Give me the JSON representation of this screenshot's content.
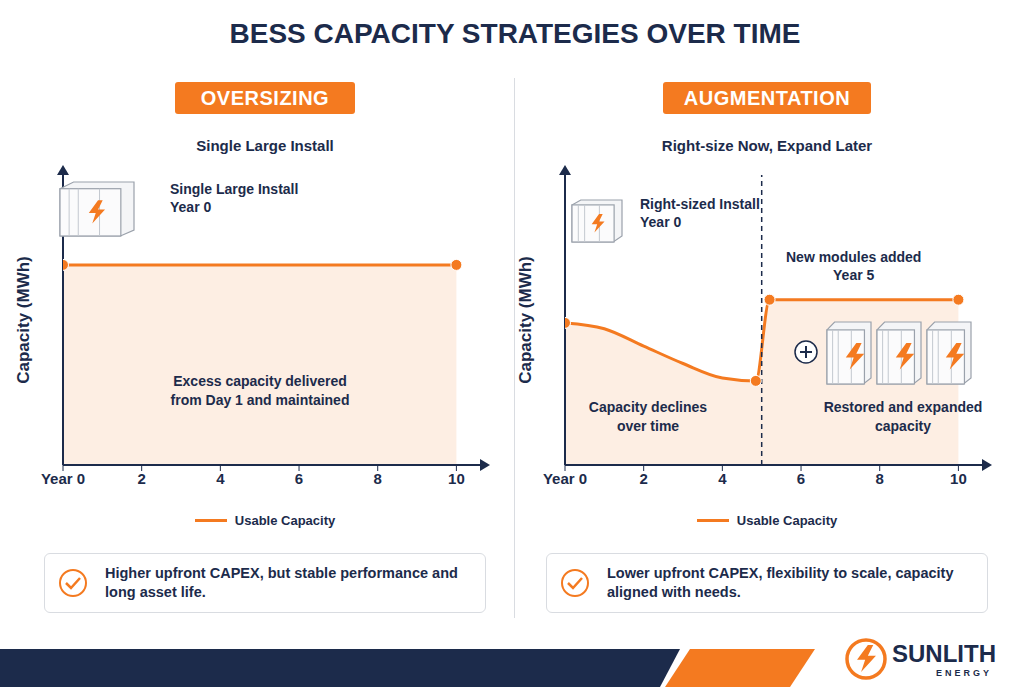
{
  "title": "BESS CAPACITY STRATEGIES OVER TIME",
  "chart_data": [
    {
      "type": "area",
      "badge": "OVERSIZING",
      "subtitle": "Single Large Install",
      "y_label": "Capacity (MWh)",
      "x": [
        0,
        10
      ],
      "series": [
        {
          "name": "Usable Capacity",
          "color": "#f47a20",
          "values": [
            69,
            69
          ],
          "marker": "circle"
        }
      ],
      "xlim": [
        0,
        10.6
      ],
      "xticks": [
        {
          "value": 0,
          "label": "Year 0"
        },
        2,
        4,
        6,
        8,
        10
      ],
      "ylim": [
        0,
        100
      ],
      "yticks": [],
      "tick_labels": "x",
      "legend": "bottom",
      "icon_label": "Single Large Install",
      "icon_sublabel": "Year 0",
      "area_labels": [
        "Excess capacity delivered from Day 1 and maintained"
      ],
      "note": "Higher upfront CAPEX, but stable performance and long asset life."
    },
    {
      "type": "area",
      "badge": "AUGMENTATION",
      "subtitle": "Right-size Now, Expand Later",
      "y_label": "Capacity (MWh)",
      "x": [
        0,
        1,
        2,
        3,
        4,
        4.85,
        5.2,
        6,
        8,
        10
      ],
      "series": [
        {
          "name": "Usable Capacity",
          "color": "#f47a20",
          "values": [
            49,
            47,
            41,
            35,
            30,
            29,
            57,
            57,
            57,
            57
          ],
          "marker": "circle"
        }
      ],
      "xlim": [
        0,
        10.6
      ],
      "xticks": [
        {
          "value": 0,
          "label": "Year 0"
        },
        2,
        4,
        6,
        8,
        10
      ],
      "ylim": [
        0,
        100
      ],
      "yticks": [],
      "tick_labels": "x",
      "legend": "bottom",
      "icon_label": "Right-sized Install",
      "icon_sublabel": "Year 0",
      "reference_line": {
        "x": 5,
        "label": "New modules added",
        "sublabel": "Year 5"
      },
      "area_labels": [
        "Capacity declines over time",
        "Restored and expanded capacity"
      ],
      "note": "Lower upfront CAPEX, flexibility to scale, capacity aligned with needs."
    }
  ],
  "logo": {
    "name": "SUNLITH",
    "tagline": "ENERGY"
  }
}
